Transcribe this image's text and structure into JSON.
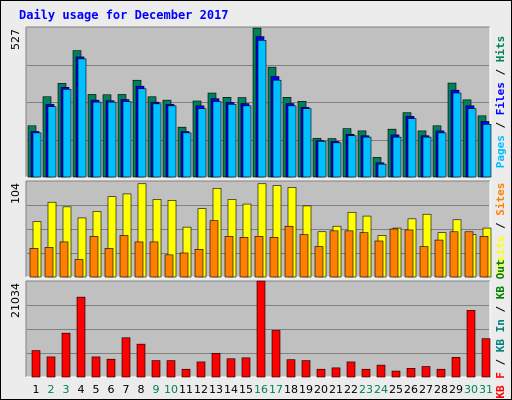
{
  "title": "Daily usage for December 2017",
  "colors": {
    "hits": "#00805c",
    "files": "#0000ff",
    "pages": "#00c0ff",
    "visits": "#ffff00",
    "sites": "#ff8000",
    "kbytes_in": "#008080",
    "kbytes_out": "#008000",
    "kbytes_f": "#ff0000",
    "weekday": "#000000",
    "weekend": "#00805c"
  },
  "chart_data": [
    {
      "type": "bar",
      "panel": "top",
      "ymax_label": "527",
      "ylim": [
        0,
        527
      ],
      "grid": true,
      "legend": [
        {
          "label": "Pages",
          "color": "#00c0ff"
        },
        {
          "label": " / ",
          "color": "#000000"
        },
        {
          "label": "Files",
          "color": "#0000ff"
        },
        {
          "label": " / ",
          "color": "#000000"
        },
        {
          "label": "Hits",
          "color": "#00805c"
        }
      ],
      "categories": [
        "1",
        "2",
        "3",
        "4",
        "5",
        "6",
        "7",
        "8",
        "9",
        "10",
        "11",
        "12",
        "13",
        "14",
        "15",
        "16",
        "17",
        "18",
        "19",
        "20",
        "21",
        "22",
        "23",
        "24",
        "25",
        "26",
        "27",
        "28",
        "29",
        "30",
        "31"
      ],
      "series": [
        {
          "name": "Hits",
          "values": [
            180,
            282,
            329,
            444,
            290,
            289,
            290,
            340,
            282,
            270,
            175,
            267,
            295,
            280,
            279,
            523,
            386,
            280,
            266,
            136,
            135,
            170,
            162,
            69,
            168,
            226,
            162,
            180,
            330,
            271,
            215
          ]
        },
        {
          "name": "Files",
          "values": [
            160,
            255,
            315,
            422,
            270,
            268,
            272,
            319,
            263,
            255,
            160,
            250,
            275,
            262,
            258,
            493,
            353,
            258,
            245,
            128,
            125,
            150,
            145,
            50,
            148,
            213,
            145,
            162,
            305,
            250,
            195
          ]
        },
        {
          "name": "Pages",
          "values": [
            155,
            247,
            308,
            415,
            263,
            263,
            265,
            310,
            257,
            250,
            155,
            240,
            265,
            255,
            250,
            480,
            340,
            250,
            240,
            125,
            120,
            145,
            140,
            45,
            140,
            205,
            140,
            155,
            295,
            240,
            185
          ]
        }
      ]
    },
    {
      "type": "bar",
      "panel": "middle",
      "ymax_label": "104",
      "ylim": [
        0,
        104
      ],
      "grid": true,
      "legend": [
        {
          "label": "Visits",
          "color": "#ffff00"
        },
        {
          "label": " / ",
          "color": "#000000"
        },
        {
          "label": "Sites",
          "color": "#ff8000"
        }
      ],
      "categories": [
        "1",
        "2",
        "3",
        "4",
        "5",
        "6",
        "7",
        "8",
        "9",
        "10",
        "11",
        "12",
        "13",
        "14",
        "15",
        "16",
        "17",
        "18",
        "19",
        "20",
        "21",
        "22",
        "23",
        "24",
        "25",
        "26",
        "27",
        "28",
        "29",
        "30",
        "31"
      ],
      "series": [
        {
          "name": "Visits",
          "values": [
            60,
            81,
            76,
            64,
            71,
            87,
            90,
            101,
            84,
            83,
            54,
            74,
            96,
            84,
            79,
            101,
            99,
            97,
            77,
            49,
            55,
            70,
            66,
            45,
            53,
            63,
            68,
            48,
            62,
            46,
            53
          ]
        },
        {
          "name": "Sites",
          "values": [
            31,
            32,
            38,
            19,
            44,
            31,
            45,
            38,
            38,
            24,
            26,
            30,
            61,
            44,
            43,
            44,
            43,
            55,
            46,
            33,
            50,
            50,
            48,
            39,
            52,
            51,
            33,
            40,
            49,
            49,
            44
          ]
        }
      ]
    },
    {
      "type": "bar",
      "panel": "bottom",
      "ymax_label": "21034",
      "ylim": [
        0,
        21034
      ],
      "grid": true,
      "legend": [
        {
          "label": "KB F",
          "color": "#ff0000"
        },
        {
          "label": " / ",
          "color": "#000000"
        },
        {
          "label": "KB In",
          "color": "#008080"
        },
        {
          "label": " / ",
          "color": "#000000"
        },
        {
          "label": "KB Out",
          "color": "#008000"
        }
      ],
      "categories": [
        "1",
        "2",
        "3",
        "4",
        "5",
        "6",
        "7",
        "8",
        "9",
        "10",
        "11",
        "12",
        "13",
        "14",
        "15",
        "16",
        "17",
        "18",
        "19",
        "20",
        "21",
        "22",
        "23",
        "24",
        "25",
        "26",
        "27",
        "28",
        "29",
        "30",
        "31"
      ],
      "series": [
        {
          "name": "KB F",
          "values": [
            5800,
            4400,
            9600,
            17500,
            4400,
            3900,
            8600,
            7200,
            3600,
            3600,
            1700,
            3300,
            5200,
            4000,
            4200,
            21034,
            10200,
            3800,
            3600,
            1700,
            2000,
            3300,
            1700,
            2600,
            1300,
            1900,
            2300,
            1700,
            4300,
            14600,
            8400
          ]
        }
      ]
    }
  ],
  "x_axis": {
    "labels": [
      "1",
      "2",
      "3",
      "4",
      "5",
      "6",
      "7",
      "8",
      "9",
      "10",
      "11",
      "12",
      "13",
      "14",
      "15",
      "16",
      "17",
      "18",
      "19",
      "20",
      "21",
      "22",
      "23",
      "24",
      "25",
      "26",
      "27",
      "28",
      "29",
      "30",
      "31"
    ],
    "weekend_days": [
      "2",
      "3",
      "9",
      "10",
      "16",
      "17",
      "23",
      "24",
      "30",
      "31"
    ]
  }
}
